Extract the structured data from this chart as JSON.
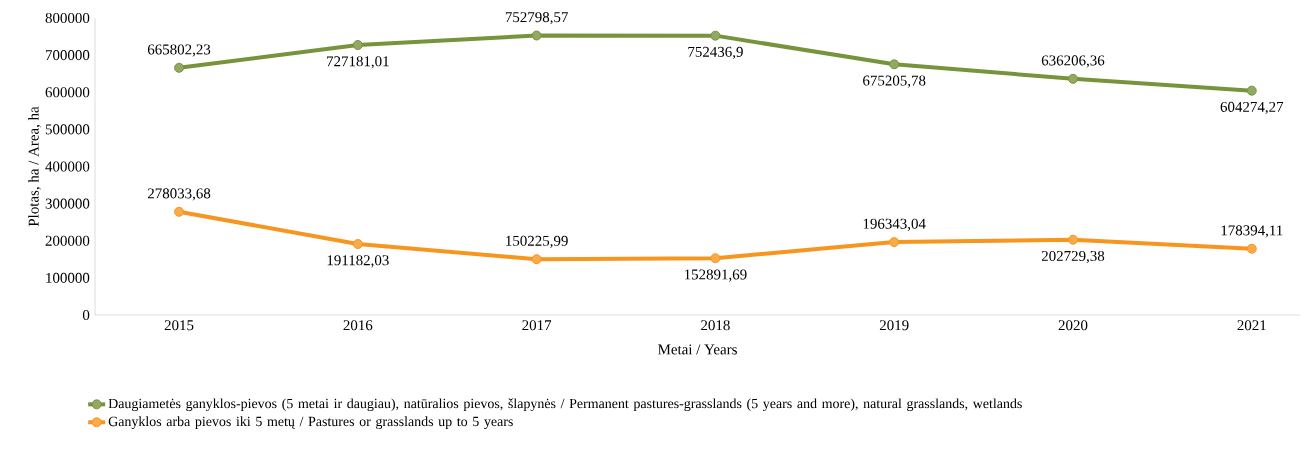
{
  "chart_data": {
    "type": "line",
    "categories": [
      "2015",
      "2016",
      "2017",
      "2018",
      "2019",
      "2020",
      "2021"
    ],
    "series": [
      {
        "name": "Daugiametės ganyklos-pievos (5 metai ir daugiau), natūralios pievos, šlapynės / Permanent pastures-grasslands (5 years and more), natural grasslands, wetlands",
        "color": "#77933c",
        "values": [
          665802.23,
          727181.01,
          752798.57,
          752436.9,
          675205.78,
          636206.36,
          604274.27
        ],
        "value_labels": [
          "665802,23",
          "727181,01",
          "752798,57",
          "752436,9",
          "675205,78",
          "636206,36",
          "604274,27"
        ]
      },
      {
        "name": "Ganyklos arba pievos iki 5 metų / Pastures or grasslands up to 5 years",
        "color": "#f7961e",
        "values": [
          278033.68,
          191182.03,
          150225.99,
          152891.69,
          196343.04,
          202729.38,
          178394.11
        ],
        "value_labels": [
          "278033,68",
          "191182,03",
          "150225,99",
          "152891,69",
          "196343,04",
          "202729,38",
          "178394,11"
        ]
      }
    ],
    "xlabel": "Metai / Years",
    "ylabel": "Plotas, ha / Area, ha",
    "ylim": [
      0,
      800000
    ],
    "yticks": [
      0,
      100000,
      200000,
      300000,
      400000,
      500000,
      600000,
      700000,
      800000
    ],
    "legend": "bottom",
    "marker": "circle"
  }
}
